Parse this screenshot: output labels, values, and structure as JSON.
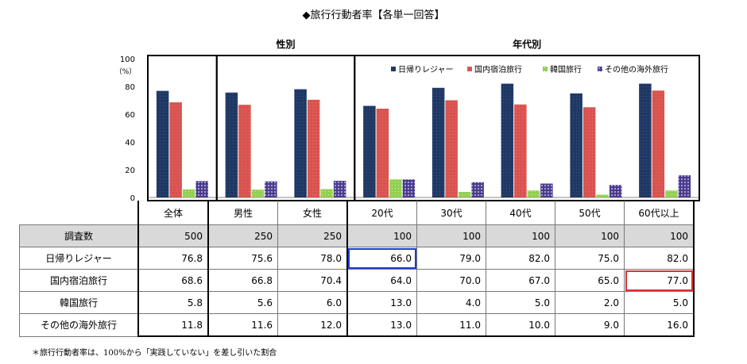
{
  "title": "◆旅行行動者率【各単一回答】",
  "note": "＊旅行行動者率は、100%から「実践していない」を差し引いた割合",
  "colors": {
    "series": [
      "#1f3864",
      "#d9534f",
      "#92d050",
      "#4b3b8f"
    ]
  },
  "chart_data": {
    "type": "bar",
    "title": "◆旅行行動者率【各単一回答】",
    "ylabel": "（%）",
    "ylim": [
      0,
      100
    ],
    "yticks": [
      0,
      20,
      40,
      60,
      80,
      100
    ],
    "group_labels": [
      {
        "label": "性別",
        "span": [
          "男性",
          "女性"
        ]
      },
      {
        "label": "年代別",
        "span": [
          "20代",
          "60代以上"
        ]
      }
    ],
    "categories": [
      "全体",
      "男性",
      "女性",
      "20代",
      "30代",
      "40代",
      "50代",
      "60代以上"
    ],
    "legend_position": "top-right",
    "series": [
      {
        "name": "日帰りレジャー",
        "values": [
          76.8,
          75.6,
          78.0,
          66.0,
          79.0,
          82.0,
          75.0,
          82.0
        ]
      },
      {
        "name": "国内宿泊旅行",
        "values": [
          68.6,
          66.8,
          70.4,
          64.0,
          70.0,
          67.0,
          65.0,
          77.0
        ]
      },
      {
        "name": "韓国旅行",
        "values": [
          5.8,
          5.6,
          6.0,
          13.0,
          4.0,
          5.0,
          2.0,
          5.0
        ]
      },
      {
        "name": "その他の海外旅行",
        "values": [
          11.8,
          11.6,
          12.0,
          13.0,
          11.0,
          10.0,
          9.0,
          16.0
        ]
      }
    ]
  },
  "table": {
    "headers": [
      "全体",
      "男性",
      "女性",
      "20代",
      "30代",
      "40代",
      "50代",
      "60代以上"
    ],
    "rows": [
      {
        "label": "調査数",
        "values": [
          "500",
          "250",
          "250",
          "100",
          "100",
          "100",
          "100",
          "100"
        ]
      },
      {
        "label": "日帰りレジャー",
        "values": [
          "76.8",
          "75.6",
          "78.0",
          "66.0",
          "79.0",
          "82.0",
          "75.0",
          "82.0"
        ]
      },
      {
        "label": "国内宿泊旅行",
        "values": [
          "68.6",
          "66.8",
          "70.4",
          "64.0",
          "70.0",
          "67.0",
          "65.0",
          "77.0"
        ]
      },
      {
        "label": "韓国旅行",
        "values": [
          "5.8",
          "5.6",
          "6.0",
          "13.0",
          "4.0",
          "5.0",
          "2.0",
          "5.0"
        ]
      },
      {
        "label": "その他の海外旅行",
        "values": [
          "11.8",
          "11.6",
          "12.0",
          "13.0",
          "11.0",
          "10.0",
          "9.0",
          "16.0"
        ]
      }
    ]
  }
}
